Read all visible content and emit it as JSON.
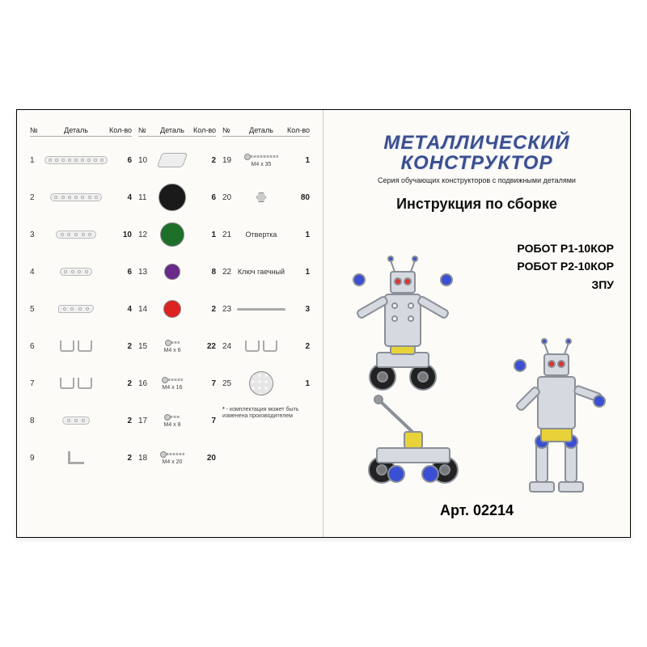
{
  "columns": {
    "header_num": "№",
    "header_part": "Деталь",
    "header_qty": "Кол-во"
  },
  "partsColumns": [
    [
      {
        "num": "1",
        "qty": "6",
        "icon": "strip",
        "holes": 9,
        "w": 78
      },
      {
        "num": "2",
        "qty": "4",
        "icon": "strip",
        "holes": 7,
        "w": 64
      },
      {
        "num": "3",
        "qty": "10",
        "icon": "strip",
        "holes": 5,
        "w": 50
      },
      {
        "num": "4",
        "qty": "6",
        "icon": "strip",
        "holes": 4,
        "w": 40
      },
      {
        "num": "5",
        "qty": "4",
        "icon": "curved-strip",
        "holes": 4,
        "w": 44
      },
      {
        "num": "6",
        "qty": "2",
        "icon": "bracket-pair"
      },
      {
        "num": "7",
        "qty": "2",
        "icon": "bracket-pair"
      },
      {
        "num": "8",
        "qty": "2",
        "icon": "strip",
        "holes": 3,
        "w": 34
      },
      {
        "num": "9",
        "qty": "2",
        "icon": "bracket-l"
      }
    ],
    [
      {
        "num": "10",
        "qty": "2",
        "icon": "diamond-plate"
      },
      {
        "num": "11",
        "qty": "6",
        "icon": "disc",
        "color": "#1a1a1a",
        "size": 34
      },
      {
        "num": "12",
        "qty": "1",
        "icon": "disc",
        "color": "#1e6f2a",
        "size": 30
      },
      {
        "num": "13",
        "qty": "8",
        "icon": "disc",
        "color": "#6a2a8a",
        "size": 20
      },
      {
        "num": "14",
        "qty": "2",
        "icon": "disc",
        "color": "#d22",
        "size": 22
      },
      {
        "num": "15",
        "qty": "22",
        "icon": "screw",
        "len": 10,
        "caption": "M4 x 6"
      },
      {
        "num": "16",
        "qty": "7",
        "icon": "screw",
        "len": 18,
        "caption": "M4 x 16"
      },
      {
        "num": "17",
        "qty": "7",
        "icon": "screw",
        "len": 12,
        "caption": "M4 x 8"
      },
      {
        "num": "18",
        "qty": "20",
        "icon": "screw",
        "len": 22,
        "caption": "M4 x 20"
      }
    ],
    [
      {
        "num": "19",
        "qty": "1",
        "icon": "screw",
        "len": 34,
        "caption": "M4 x 35"
      },
      {
        "num": "20",
        "qty": "80",
        "icon": "nut"
      },
      {
        "num": "21",
        "qty": "1",
        "icon": "text-part",
        "label": "Отвертка"
      },
      {
        "num": "22",
        "qty": "1",
        "icon": "text-part",
        "label": "Ключ гаечный"
      },
      {
        "num": "23",
        "qty": "3",
        "icon": "rod"
      },
      {
        "num": "24",
        "qty": "2",
        "icon": "bracket-pair"
      },
      {
        "num": "25",
        "qty": "1",
        "icon": "disc",
        "color": "#e6e6e6",
        "size": 30,
        "dots": true
      }
    ]
  ],
  "footnote_marker": "*",
  "footnote_text": "- комплектация может быть изменена производителем",
  "right": {
    "title_line1": "МЕТАЛЛИЧЕСКИЙ",
    "title_line2": "КОНСТРУКТОР",
    "subtitle": "Серия обучающих конструкторов с подвижными деталями",
    "instruction": "Инструкция по сборке",
    "models": [
      "РОБОТ Р1-10КОР",
      "РОБОТ Р2-10КОР",
      "ЗПУ"
    ],
    "article_label": "Арт. 02214"
  },
  "colors": {
    "metal": "#c8cdd4",
    "metal_dark": "#9aa1ab",
    "blue": "#3a4fd4",
    "yellow": "#e8d23a",
    "red": "#d33",
    "title": "#3a4f8f"
  }
}
